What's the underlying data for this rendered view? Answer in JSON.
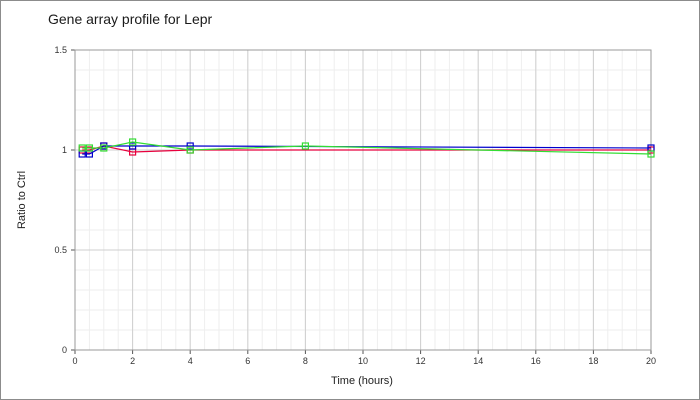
{
  "chart_data": {
    "type": "line",
    "title": "Gene array profile for Lepr",
    "xlabel": "Time (hours)",
    "ylabel": "Ratio to Ctrl",
    "xlim": [
      0,
      20
    ],
    "ylim": [
      0,
      1.5
    ],
    "x_ticks": [
      "0",
      "2",
      "4",
      "6",
      "8",
      "10",
      "12",
      "14",
      "16",
      "18",
      "20"
    ],
    "y_ticks": [
      "0",
      "0.5",
      "1",
      "1.5"
    ],
    "grid": true,
    "minor_grid": true,
    "legend": "none",
    "series": [
      {
        "color": "#e8003d",
        "x": [
          0.25,
          0.5,
          1,
          2,
          4,
          20
        ],
        "y": [
          1.0,
          1.0,
          1.02,
          0.99,
          1.0,
          1.0
        ]
      },
      {
        "color": "#0000cc",
        "x": [
          0.25,
          0.5,
          1,
          2,
          4,
          20
        ],
        "y": [
          0.98,
          0.98,
          1.02,
          1.02,
          1.02,
          1.01
        ]
      },
      {
        "color": "#33dd33",
        "x": [
          0.25,
          0.5,
          1,
          2,
          4,
          8,
          20
        ],
        "y": [
          1.01,
          1.01,
          1.01,
          1.04,
          1.0,
          1.02,
          0.98
        ]
      }
    ]
  }
}
